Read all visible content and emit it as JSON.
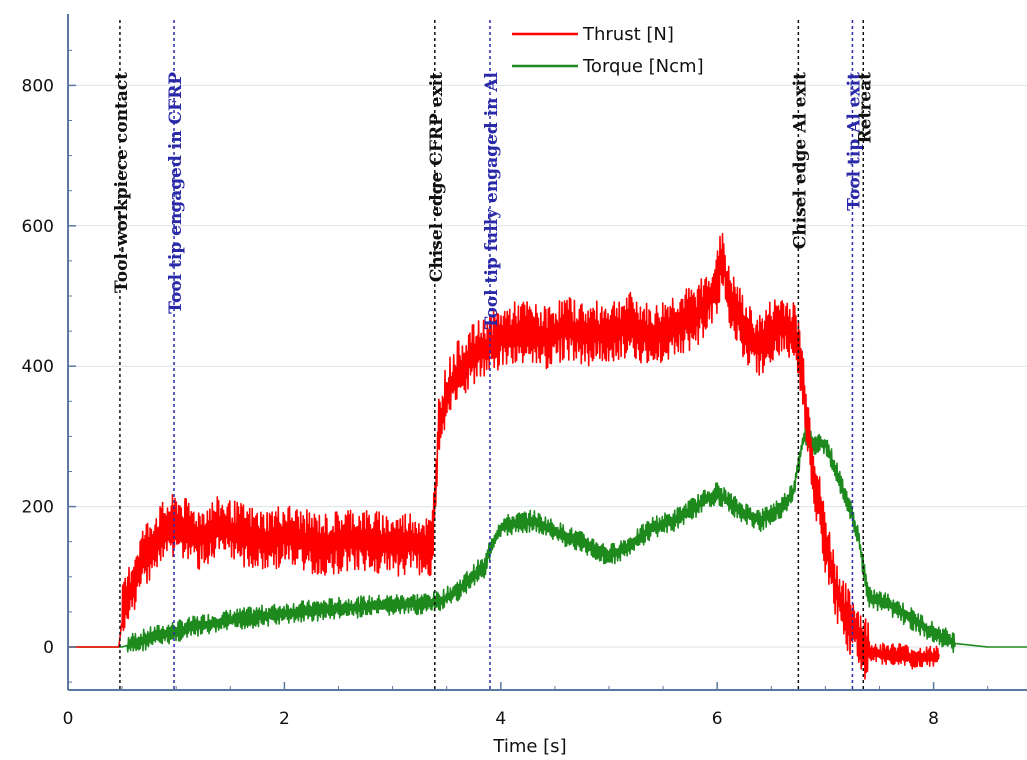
{
  "chart_data": {
    "type": "line",
    "title": "",
    "xlabel": "Time [s]",
    "ylabel": "",
    "xlim": [
      0,
      8.9
    ],
    "ylim": [
      -60,
      900
    ],
    "x_ticks": [
      0,
      2,
      4,
      6,
      8
    ],
    "y_ticks": [
      0,
      200,
      400,
      600,
      800
    ],
    "grid": true,
    "legend": "top-center",
    "series": [
      {
        "name": "Thrust [N]",
        "color": "#ff0000",
        "noise": 35,
        "x": [
          0,
          0.47,
          0.5,
          0.6,
          0.7,
          0.8,
          0.9,
          1.0,
          1.1,
          1.2,
          1.4,
          1.6,
          1.8,
          2.0,
          2.2,
          2.4,
          2.6,
          2.8,
          3.0,
          3.2,
          3.36,
          3.39,
          3.42,
          3.5,
          3.6,
          3.7,
          3.8,
          3.9,
          4.0,
          4.2,
          4.4,
          4.6,
          4.8,
          5.0,
          5.2,
          5.4,
          5.6,
          5.8,
          5.9,
          6.0,
          6.05,
          6.1,
          6.2,
          6.3,
          6.4,
          6.5,
          6.6,
          6.7,
          6.75,
          6.8,
          6.85,
          6.9,
          7.0,
          7.1,
          7.2,
          7.3,
          7.35,
          7.4,
          7.5,
          7.6,
          7.7,
          7.8,
          8.0,
          8.05
        ],
        "values": [
          0,
          0,
          40,
          90,
          130,
          150,
          165,
          175,
          165,
          155,
          170,
          160,
          150,
          160,
          150,
          145,
          155,
          150,
          145,
          150,
          140,
          200,
          310,
          360,
          390,
          410,
          420,
          430,
          440,
          450,
          440,
          455,
          445,
          450,
          460,
          440,
          460,
          470,
          490,
          520,
          560,
          500,
          470,
          440,
          430,
          450,
          460,
          450,
          430,
          370,
          300,
          240,
          150,
          80,
          40,
          20,
          0,
          -5,
          -10,
          -10,
          -10,
          -15,
          -15,
          -10
        ]
      },
      {
        "name": "Torque [Ncm]",
        "color": "#1e8a1e",
        "noise": 12,
        "x": [
          0,
          0.5,
          0.6,
          0.8,
          1.0,
          1.2,
          1.5,
          2.0,
          2.5,
          3.0,
          3.3,
          3.4,
          3.5,
          3.6,
          3.7,
          3.8,
          3.85,
          3.9,
          4.0,
          4.1,
          4.3,
          4.5,
          4.8,
          5.0,
          5.2,
          5.4,
          5.6,
          5.8,
          6.0,
          6.2,
          6.4,
          6.6,
          6.7,
          6.8,
          6.9,
          7.0,
          7.1,
          7.2,
          7.3,
          7.4,
          7.6,
          7.8,
          8.0,
          8.2,
          8.5,
          8.9
        ],
        "values": [
          0,
          0,
          5,
          15,
          22,
          30,
          38,
          48,
          55,
          60,
          62,
          63,
          70,
          80,
          95,
          110,
          112,
          140,
          170,
          175,
          180,
          165,
          145,
          130,
          145,
          170,
          180,
          200,
          220,
          195,
          180,
          200,
          220,
          300,
          290,
          290,
          250,
          210,
          160,
          70,
          60,
          40,
          20,
          5,
          0,
          0
        ]
      }
    ],
    "annotations": [
      {
        "x": 0.48,
        "label": "Tool-workpiece contact",
        "color": "#111111"
      },
      {
        "x": 0.98,
        "label": "Tool tip engaged in CFRP",
        "color": "#2a2aa8"
      },
      {
        "x": 3.39,
        "label": "Chisel edge CFRP exit",
        "color": "#111111"
      },
      {
        "x": 3.9,
        "label": "Tool tip fully engaged in Al",
        "color": "#2a2aa8"
      },
      {
        "x": 6.75,
        "label": "Chisel edge Al exit",
        "color": "#111111"
      },
      {
        "x": 7.25,
        "label": "Tool tip Al exit",
        "color": "#2a2aa8"
      },
      {
        "x": 7.35,
        "label": "Retreat",
        "color": "#111111"
      }
    ]
  }
}
